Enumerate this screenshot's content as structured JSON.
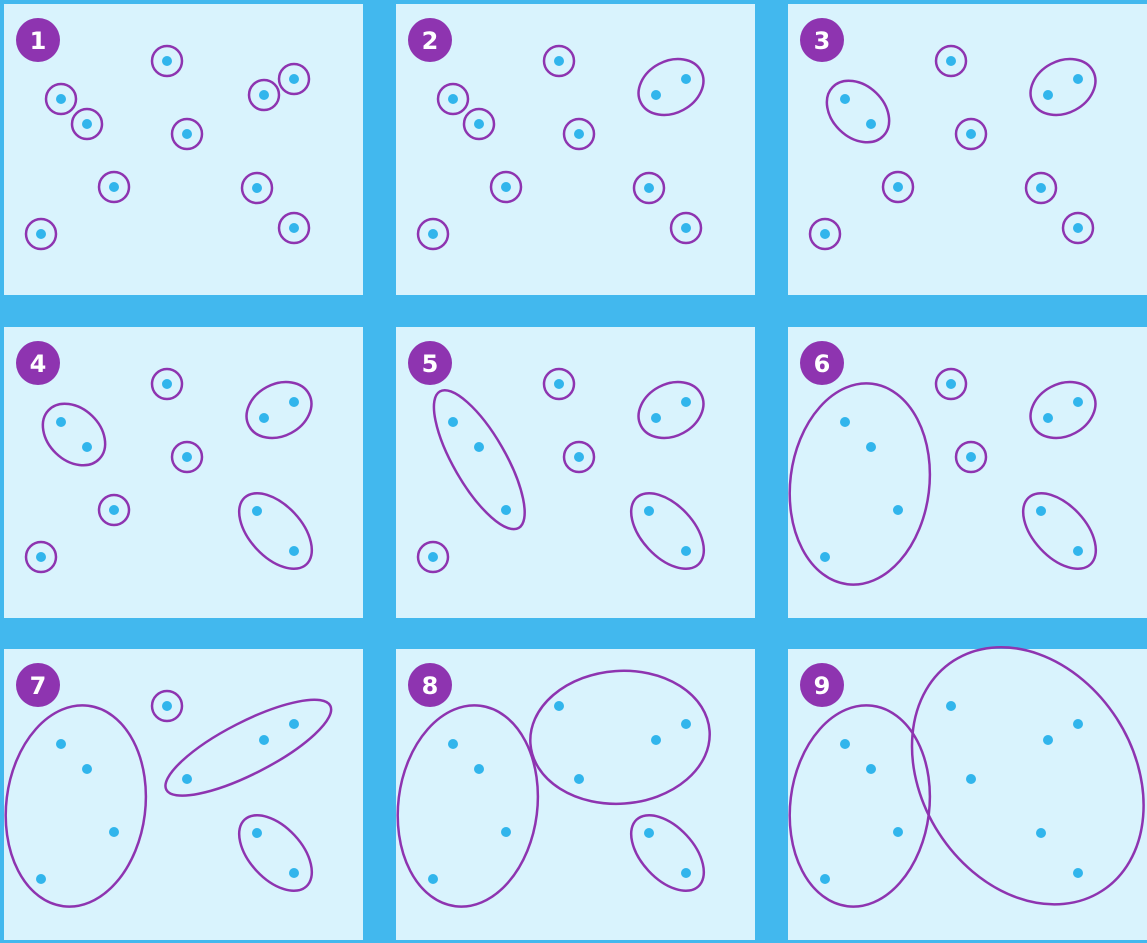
{
  "colors": {
    "background": "#42b8ee",
    "panel": "#d9f3fd",
    "ring": "#8e34b0",
    "point": "#31b5ec",
    "badge": "#8e34b0",
    "badge_text": "#ffffff"
  },
  "panels": [
    {
      "label": "1",
      "step": 1
    },
    {
      "label": "2",
      "step": 2
    },
    {
      "label": "3",
      "step": 3
    },
    {
      "label": "4",
      "step": 4
    },
    {
      "label": "5",
      "step": 5
    },
    {
      "label": "6",
      "step": 6
    },
    {
      "label": "7",
      "step": 7
    },
    {
      "label": "8",
      "step": 8
    },
    {
      "label": "9",
      "step": 9
    }
  ]
}
